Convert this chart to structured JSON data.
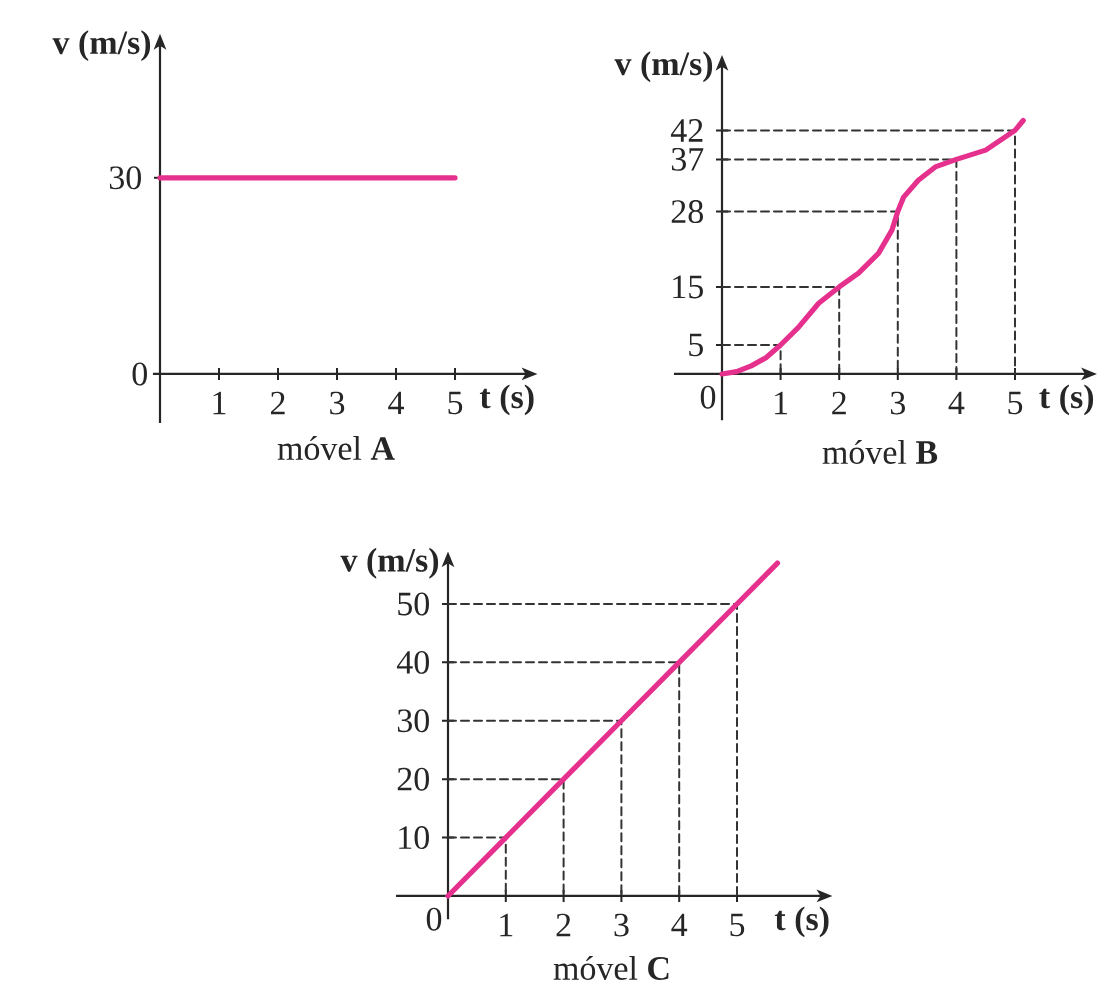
{
  "chart_data": [
    {
      "type": "line",
      "title": "móvel **A**",
      "xlabel": "t (s)",
      "ylabel": "v (m/s)",
      "xlim": [
        -0.12,
        6.23
      ],
      "ylim": [
        -7.5,
        50.5
      ],
      "xticks": [
        1,
        2,
        3,
        4,
        5
      ],
      "yticks": [
        0,
        30
      ],
      "series": [
        {
          "color": "#e5318d",
          "line_style": "solid",
          "x": [
            0,
            5
          ],
          "values": [
            30,
            30
          ]
        }
      ]
    },
    {
      "type": "line",
      "title": "móvel **B**",
      "xlabel": "t (s)",
      "ylabel": "v (m/s)",
      "xlim": [
        -0.82,
        6.23
      ],
      "ylim": [
        -8,
        53.3
      ],
      "xticks": [
        0,
        1,
        2,
        3,
        4,
        5
      ],
      "yticks": [
        5,
        15,
        28,
        37,
        42
      ],
      "series": [
        {
          "color": "#333333",
          "line_style": "dashed",
          "x": [
            0,
            1,
            1
          ],
          "values": [
            5,
            5,
            0
          ]
        },
        {
          "color": "#333333",
          "line_style": "dashed",
          "x": [
            0,
            2,
            2
          ],
          "values": [
            15,
            15,
            0
          ]
        },
        {
          "color": "#333333",
          "line_style": "dashed",
          "x": [
            0,
            3,
            3
          ],
          "values": [
            28,
            28,
            0
          ]
        },
        {
          "color": "#333333",
          "line_style": "dashed",
          "x": [
            0,
            4,
            4
          ],
          "values": [
            37,
            37,
            0
          ]
        },
        {
          "color": "#333333",
          "line_style": "dashed",
          "x": [
            0,
            5,
            5
          ],
          "values": [
            42,
            42,
            0
          ]
        },
        {
          "color": "#e5318d",
          "line_style": "solid",
          "x": [
            0,
            0.25,
            0.5,
            0.75,
            1,
            1.3,
            1.65,
            2,
            2.33,
            2.67,
            2.9,
            3,
            3.1,
            3.35,
            3.64,
            4,
            4.5,
            5,
            5.14
          ],
          "values": [
            0,
            0.4,
            1.4,
            2.8,
            5,
            8,
            12.2,
            15,
            17.4,
            20.8,
            24.8,
            28,
            30.5,
            33.4,
            35.7,
            37,
            38.6,
            42,
            43.7
          ]
        }
      ]
    },
    {
      "type": "line",
      "title": "móvel **C**",
      "xlabel": "t (s)",
      "ylabel": "v (m/s)",
      "xlim": [
        -0.9,
        6.48
      ],
      "ylim": [
        -4,
        57.3
      ],
      "xticks": [
        0,
        1,
        2,
        3,
        4,
        5
      ],
      "yticks": [
        10,
        20,
        30,
        40,
        50
      ],
      "series": [
        {
          "color": "#333333",
          "line_style": "dashed",
          "x": [
            0,
            1,
            1
          ],
          "values": [
            10,
            10,
            0
          ]
        },
        {
          "color": "#333333",
          "line_style": "dashed",
          "x": [
            0,
            2,
            2
          ],
          "values": [
            20,
            20,
            0
          ]
        },
        {
          "color": "#333333",
          "line_style": "dashed",
          "x": [
            0,
            3,
            3
          ],
          "values": [
            30,
            30,
            0
          ]
        },
        {
          "color": "#333333",
          "line_style": "dashed",
          "x": [
            0,
            4,
            4
          ],
          "values": [
            40,
            40,
            0
          ]
        },
        {
          "color": "#333333",
          "line_style": "dashed",
          "x": [
            0,
            5,
            5
          ],
          "values": [
            50,
            50,
            0
          ]
        },
        {
          "color": "#e5318d",
          "line_style": "solid",
          "x": [
            0,
            1,
            2,
            3,
            4,
            5,
            5.7
          ],
          "values": [
            0,
            10,
            20,
            30,
            40,
            50,
            57
          ]
        }
      ]
    }
  ]
}
